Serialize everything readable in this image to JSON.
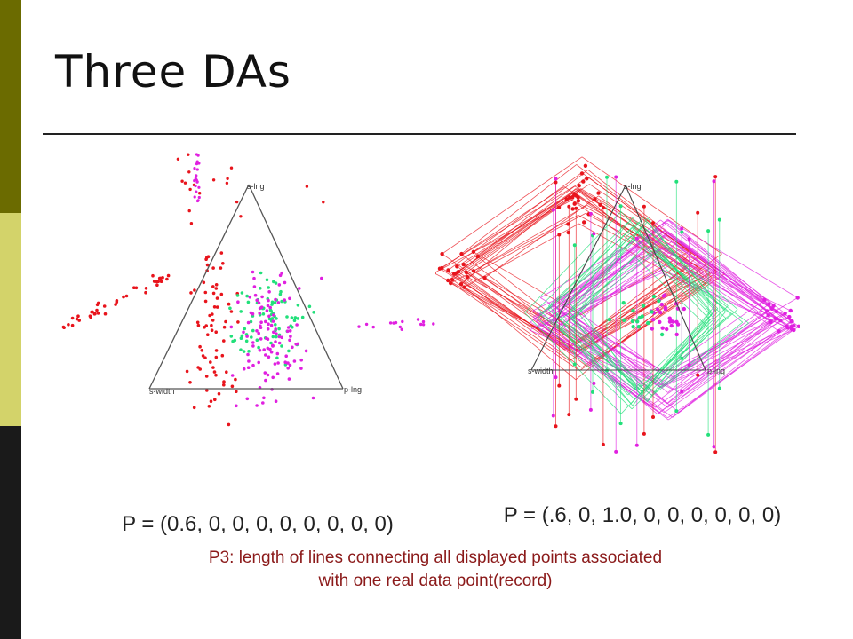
{
  "slide": {
    "title": "Three DAs",
    "caption_left": "P = (0.6, 0, 0, 0, 0, 0, 0, 0, 0)",
    "caption_right": "P = (.6, 0, 1.0, 0, 0, 0, 0, 0, 0)",
    "note_line1": "P3: length of lines connecting all displayed points associated",
    "note_line2": "with one real data point(record)"
  },
  "diagram_left": {
    "labels": {
      "top": "s-lng",
      "left": "s-width",
      "right": "p-lng"
    }
  },
  "diagram_right": {
    "labels": {
      "top": "s-lng",
      "left": "s-width",
      "right": "p-lng"
    }
  },
  "colors": {
    "class_a": "#e8141c",
    "class_b": "#22e07a",
    "class_c": "#e020e0",
    "axis": "#555555",
    "note": "#8b1a1a"
  }
}
